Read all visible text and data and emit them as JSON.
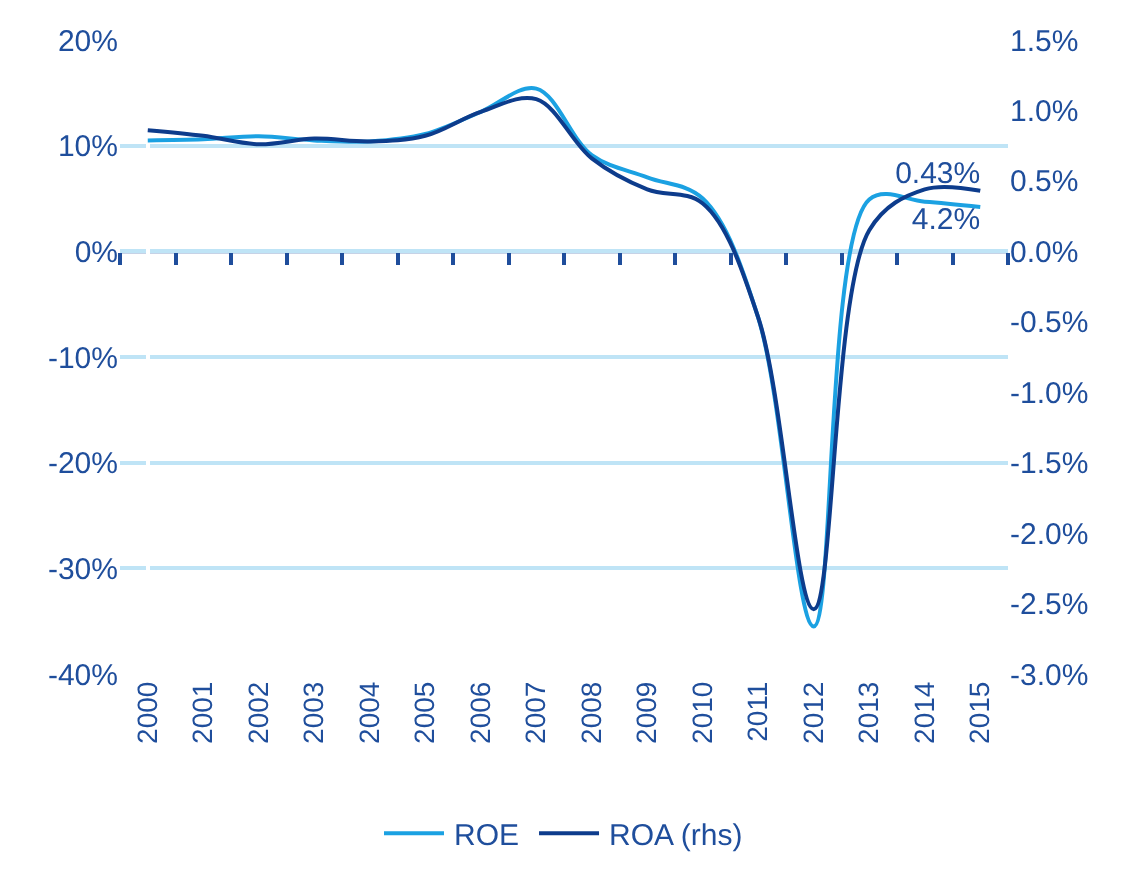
{
  "chart_data": {
    "type": "line",
    "categories": [
      "2000",
      "2001",
      "2002",
      "2003",
      "2004",
      "2005",
      "2006",
      "2007",
      "2008",
      "2009",
      "2010",
      "2011",
      "2012",
      "2013",
      "2014",
      "2015"
    ],
    "series": [
      {
        "name": "ROE",
        "color": "#1ba1e2",
        "values": [
          10.5,
          10.6,
          10.9,
          10.5,
          10.4,
          11.1,
          13.2,
          15.4,
          9.1,
          7.0,
          5.0,
          -6.3,
          -35.5,
          4.9,
          4.7,
          4.2
        ],
        "value_labels": [
          null,
          null,
          null,
          null,
          null,
          null,
          null,
          null,
          null,
          null,
          null,
          null,
          null,
          null,
          null,
          "4.2%"
        ]
      },
      {
        "name": "ROA (rhs)",
        "color": "#0d3c8c",
        "axis": "y2",
        "values": [
          0.86,
          0.82,
          0.76,
          0.8,
          0.78,
          0.82,
          0.99,
          1.08,
          0.66,
          0.44,
          0.34,
          -0.47,
          -2.54,
          0.15,
          0.44,
          0.43
        ],
        "value_labels": [
          null,
          null,
          null,
          null,
          null,
          null,
          null,
          null,
          null,
          null,
          null,
          null,
          null,
          null,
          null,
          "0.43%"
        ]
      }
    ],
    "ylim": [
      -40,
      20
    ],
    "yticks": [
      {
        "value": -40,
        "label": "-40%"
      },
      {
        "value": -30,
        "label": "-30%"
      },
      {
        "value": -20,
        "label": "-20%"
      },
      {
        "value": -10,
        "label": "-10%"
      },
      {
        "value": 0,
        "label": "0%"
      },
      {
        "value": 10,
        "label": "10%"
      },
      {
        "value": 20,
        "label": "20%"
      }
    ],
    "y2lim": [
      -3.0,
      1.5
    ],
    "y2ticks": [
      {
        "value": -3.0,
        "label": "-3.0%"
      },
      {
        "value": -2.5,
        "label": "-2.5%"
      },
      {
        "value": -2.0,
        "label": "-2.0%"
      },
      {
        "value": -1.5,
        "label": "-1.5%"
      },
      {
        "value": -1.0,
        "label": "-1.0%"
      },
      {
        "value": -0.5,
        "label": "-0.5%"
      },
      {
        "value": 0.0,
        "label": "0.0%"
      },
      {
        "value": 0.5,
        "label": "0.5%"
      },
      {
        "value": 1.0,
        "label": "1.0%"
      },
      {
        "value": 1.5,
        "label": "1.5%"
      }
    ],
    "ref_lines": [
      {
        "axis": "y",
        "value": 0,
        "color": "#1f4e9c"
      }
    ],
    "grid": "y",
    "legend": "bottom",
    "marker": "none",
    "line_style": "solid"
  }
}
